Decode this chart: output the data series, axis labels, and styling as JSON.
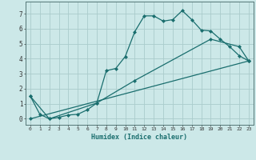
{
  "xlabel": "Humidex (Indice chaleur)",
  "bg_color": "#cce8e8",
  "grid_color": "#aacccc",
  "line_color": "#1a6e6e",
  "line1_x": [
    0,
    1,
    2,
    3,
    4,
    5,
    6,
    7,
    8,
    9,
    10,
    11,
    12,
    13,
    14,
    15,
    16,
    17,
    18,
    19,
    20,
    21,
    22,
    23
  ],
  "line1_y": [
    1.5,
    0.3,
    0.0,
    0.1,
    0.25,
    0.3,
    0.6,
    1.05,
    3.2,
    3.35,
    4.15,
    5.8,
    6.85,
    6.85,
    6.5,
    6.6,
    7.2,
    6.6,
    5.9,
    5.85,
    5.3,
    4.8,
    4.2,
    3.85
  ],
  "line2_x": [
    0,
    2,
    7,
    11,
    19,
    22,
    23
  ],
  "line2_y": [
    1.5,
    0.0,
    1.05,
    2.55,
    5.3,
    4.8,
    3.85
  ],
  "line3_x": [
    0,
    23
  ],
  "line3_y": [
    0.0,
    3.85
  ],
  "xlim": [
    -0.5,
    23.5
  ],
  "ylim": [
    -0.4,
    7.8
  ],
  "xticks": [
    0,
    1,
    2,
    3,
    4,
    5,
    6,
    7,
    8,
    9,
    10,
    11,
    12,
    13,
    14,
    15,
    16,
    17,
    18,
    19,
    20,
    21,
    22,
    23
  ],
  "yticks": [
    0,
    1,
    2,
    3,
    4,
    5,
    6,
    7
  ]
}
